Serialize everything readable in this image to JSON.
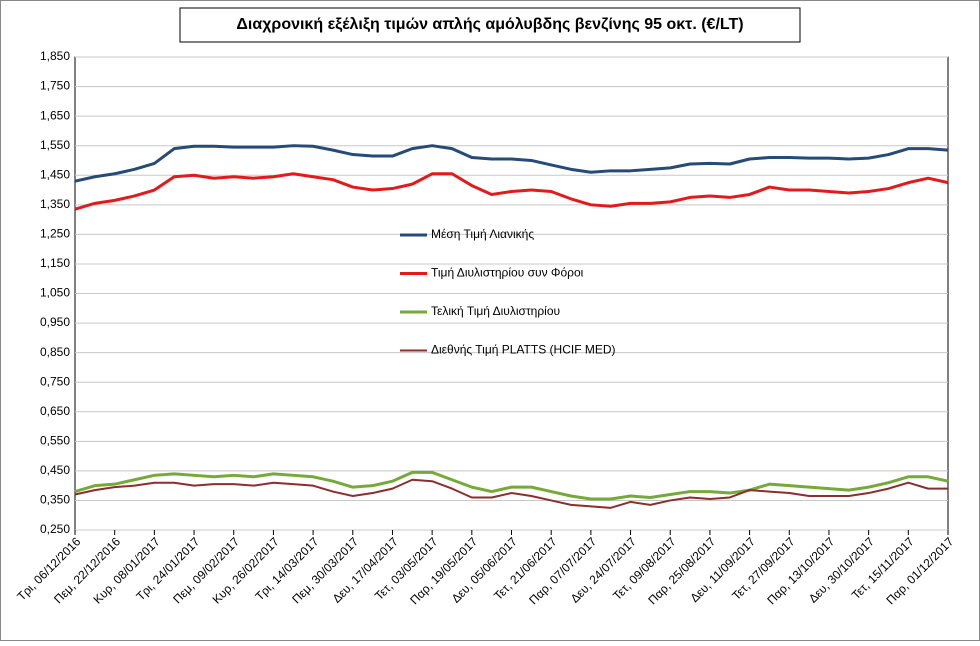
{
  "chart_data": {
    "type": "line",
    "title": "Διαχρονική εξέλιξη τιμών απλής αμόλυβδης βενζίνης 95 οκτ. (€/LT)",
    "categories": [
      "Τρι, 06/12/2016",
      null,
      "Πεμ, 22/12/2016",
      null,
      "Κυρ, 08/01/2017",
      null,
      "Τρι, 24/01/2017",
      null,
      "Πεμ, 09/02/2017",
      null,
      "Κυρ, 26/02/2017",
      null,
      "Τρι, 14/03/2017",
      null,
      "Πεμ, 30/03/2017",
      null,
      "Δευ, 17/04/2017",
      null,
      "Τετ, 03/05/2017",
      null,
      "Παρ, 19/05/2017",
      null,
      "Δευ, 05/06/2017",
      null,
      "Τετ, 21/06/2017",
      null,
      "Παρ, 07/07/2017",
      null,
      "Δευ, 24/07/2017",
      null,
      "Τετ, 09/08/2017",
      null,
      "Παρ, 25/08/2017",
      null,
      "Δευ, 11/09/2017",
      null,
      "Τετ, 27/09/2017",
      null,
      "Παρ, 13/10/2017",
      null,
      "Δευ, 30/10/2017",
      null,
      "Τετ, 15/11/2017",
      null,
      "Παρ, 01/12/2017"
    ],
    "series": [
      {
        "name": "Μέση Τιμή Λιανικής",
        "color": "#254b76",
        "values": [
          1.43,
          1.445,
          1.455,
          1.47,
          1.49,
          1.54,
          1.548,
          1.548,
          1.545,
          1.545,
          1.545,
          1.55,
          1.548,
          1.535,
          1.52,
          1.515,
          1.515,
          1.54,
          1.55,
          1.54,
          1.51,
          1.505,
          1.505,
          1.5,
          1.485,
          1.47,
          1.46,
          1.465,
          1.465,
          1.47,
          1.475,
          1.488,
          1.49,
          1.488,
          1.505,
          1.51,
          1.51,
          1.508,
          1.508,
          1.505,
          1.508,
          1.52,
          1.54,
          1.54,
          1.535
        ]
      },
      {
        "name": "Τιμή Διυλιστηρίου συν Φόροι",
        "color": "#e31a1c",
        "values": [
          1.335,
          1.355,
          1.365,
          1.38,
          1.4,
          1.445,
          1.45,
          1.44,
          1.445,
          1.44,
          1.445,
          1.455,
          1.445,
          1.435,
          1.41,
          1.4,
          1.405,
          1.42,
          1.455,
          1.455,
          1.415,
          1.385,
          1.395,
          1.4,
          1.395,
          1.37,
          1.35,
          1.345,
          1.355,
          1.355,
          1.36,
          1.375,
          1.38,
          1.375,
          1.385,
          1.41,
          1.4,
          1.4,
          1.395,
          1.39,
          1.395,
          1.405,
          1.425,
          1.44,
          1.425
        ]
      },
      {
        "name": "Τελική Τιμή Διυλιστηρίου",
        "color": "#76a93a",
        "values": [
          0.38,
          0.4,
          0.405,
          0.42,
          0.435,
          0.44,
          0.435,
          0.43,
          0.435,
          0.43,
          0.44,
          0.435,
          0.43,
          0.415,
          0.395,
          0.4,
          0.415,
          0.445,
          0.445,
          0.42,
          0.395,
          0.38,
          0.395,
          0.395,
          0.38,
          0.365,
          0.355,
          0.355,
          0.365,
          0.36,
          0.37,
          0.38,
          0.38,
          0.375,
          0.385,
          0.405,
          0.4,
          0.395,
          0.39,
          0.385,
          0.395,
          0.41,
          0.43,
          0.43,
          0.415
        ]
      },
      {
        "name": "Διεθνής Τιμή PLATTS (HCIF MED)",
        "color": "#8b2e2e",
        "values": [
          0.37,
          0.385,
          0.395,
          0.4,
          0.41,
          0.41,
          0.4,
          0.405,
          0.405,
          0.4,
          0.41,
          0.405,
          0.4,
          0.38,
          0.365,
          0.375,
          0.39,
          0.42,
          0.415,
          0.39,
          0.36,
          0.36,
          0.375,
          0.365,
          0.35,
          0.335,
          0.33,
          0.325,
          0.345,
          0.335,
          0.35,
          0.36,
          0.355,
          0.36,
          0.385,
          0.38,
          0.375,
          0.365,
          0.365,
          0.365,
          0.375,
          0.39,
          0.41,
          0.39,
          0.39
        ]
      }
    ],
    "ylim": [
      0.25,
      1.85
    ],
    "yticks": [
      {
        "value": 0.25,
        "label": "0,250"
      },
      {
        "value": 0.35,
        "label": "0,350"
      },
      {
        "value": 0.45,
        "label": "0,450"
      },
      {
        "value": 0.55,
        "label": "0,550"
      },
      {
        "value": 0.65,
        "label": "0,650"
      },
      {
        "value": 0.75,
        "label": "0,750"
      },
      {
        "value": 0.85,
        "label": "0,850"
      },
      {
        "value": 0.95,
        "label": "0,950"
      },
      {
        "value": 1.05,
        "label": "1,050"
      },
      {
        "value": 1.15,
        "label": "1,150"
      },
      {
        "value": 1.25,
        "label": "1,250"
      },
      {
        "value": 1.35,
        "label": "1,350"
      },
      {
        "value": 1.45,
        "label": "1,450"
      },
      {
        "value": 1.55,
        "label": "1,550"
      },
      {
        "value": 1.65,
        "label": "1,650"
      },
      {
        "value": 1.75,
        "label": "1,750"
      },
      {
        "value": 1.85,
        "label": "1,850"
      }
    ],
    "grid": true,
    "legend": "center"
  }
}
